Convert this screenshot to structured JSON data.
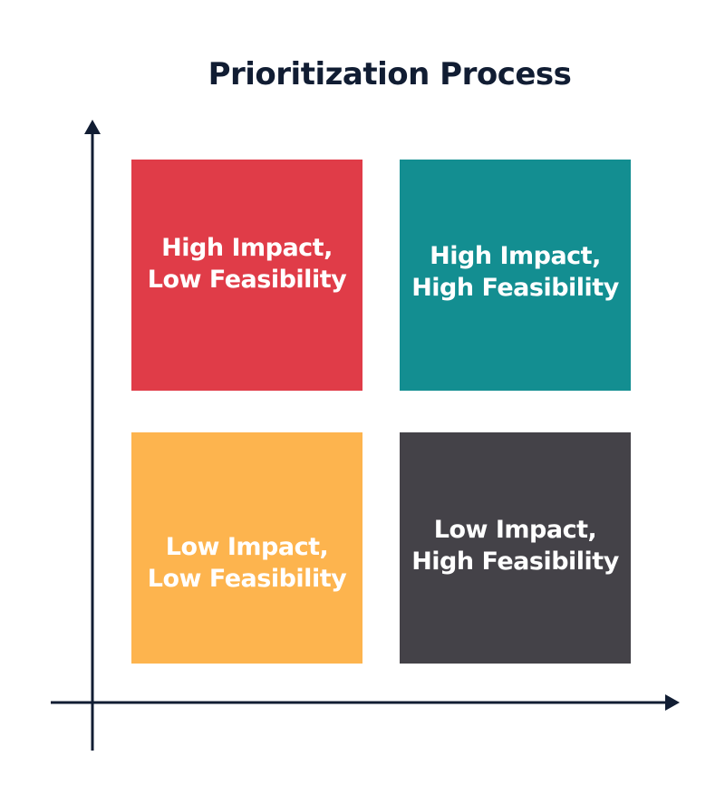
{
  "title": "Prioritization Process",
  "quadrants": {
    "top_left": {
      "line1": "High Impact,",
      "line2": "Low Feasibility",
      "color": "#e03c48"
    },
    "top_right": {
      "line1": "High Impact,",
      "line2": "High Feasibility",
      "color": "#138e91"
    },
    "bottom_left": {
      "line1": "Low Impact,",
      "line2": "Low Feasibility",
      "color": "#fdb44e"
    },
    "bottom_right": {
      "line1": "Low Impact,",
      "line2": "High Feasibility",
      "color": "#444248"
    }
  },
  "axis_color": "#111d33"
}
